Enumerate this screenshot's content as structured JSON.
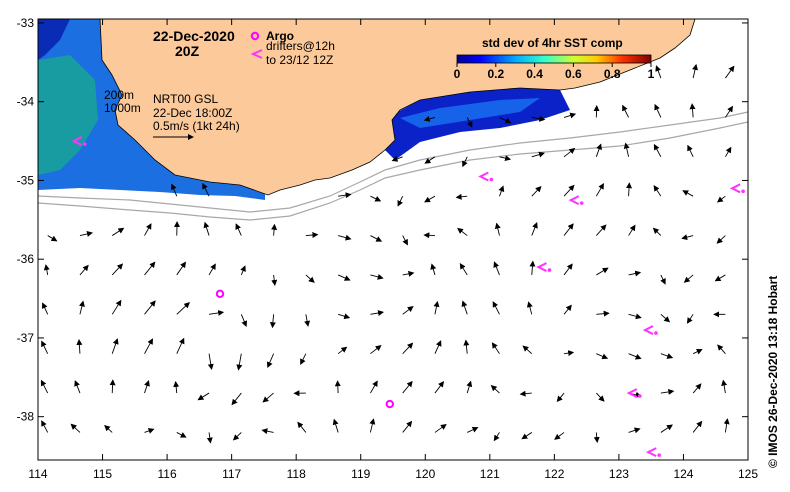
{
  "title": {
    "date": "22-Dec-2020",
    "time": "20Z"
  },
  "legend": {
    "argo_label": "Argo",
    "drifters_line1": "drifters@12h",
    "drifters_line2": "to 23/12 12Z",
    "colorbar_title": "std dev of 4hr SST comp",
    "colorbar_ticks": [
      "0",
      "0.2",
      "0.4",
      "0.6",
      "0.8",
      "1"
    ]
  },
  "annotations": {
    "depth_200": "200m",
    "depth_1000": "1000m",
    "product": "NRT00 GSL",
    "product_time": "22-Dec 18:00Z",
    "scale": "0.5m/s (1kt 24h)"
  },
  "credit": "© IMOS 26-Dec-2020 13:18 Hobart",
  "colors": {
    "land": "#fbc99a",
    "argo": "#ff00ff",
    "drifter": "#ff33ff",
    "bathymetry": "#a8a8a8",
    "coast_edge": "#000000"
  },
  "chart_data": {
    "type": "map",
    "x_ticks": [
      "114",
      "115",
      "116",
      "117",
      "118",
      "119",
      "120",
      "121",
      "122",
      "123",
      "124",
      "125"
    ],
    "y_ticks": [
      "-33",
      "-34",
      "-35",
      "-36",
      "-37",
      "-38"
    ],
    "xlim": [
      114,
      125
    ],
    "ylim": [
      -38.55,
      -32.95
    ],
    "argo_floats": [
      {
        "lon": 116.82,
        "lat": -36.44
      },
      {
        "lon": 119.45,
        "lat": -37.84
      }
    ],
    "drifters": [
      {
        "lon": 123.45,
        "lat": -36.9
      },
      {
        "lon": 123.2,
        "lat": -37.7
      },
      {
        "lon": 122.3,
        "lat": -35.25
      },
      {
        "lon": 121.8,
        "lat": -36.1
      },
      {
        "lon": 120.9,
        "lat": -34.95
      },
      {
        "lon": 114.6,
        "lat": -34.5
      },
      {
        "lon": 124.8,
        "lat": -35.1
      },
      {
        "lon": 123.5,
        "lat": -38.45
      }
    ]
  }
}
